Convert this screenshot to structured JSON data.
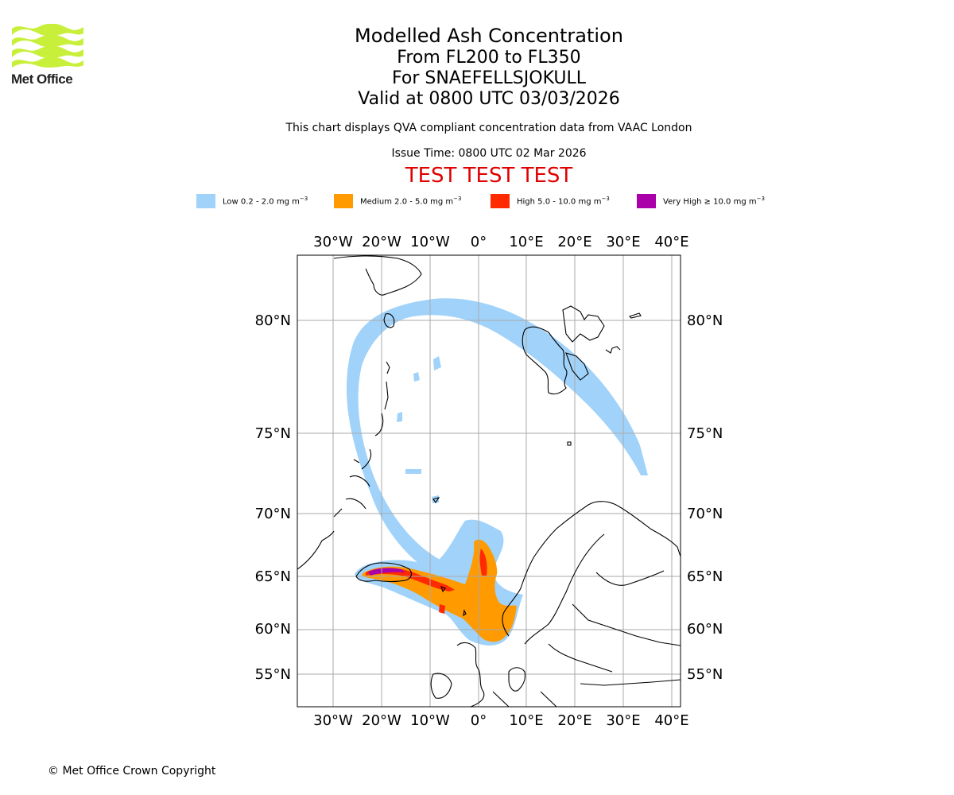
{
  "logo": {
    "name": "Met Office",
    "colors": [
      "#c8f03a",
      "#b4e02a"
    ]
  },
  "title": {
    "line1": "Modelled Ash Concentration",
    "line2": "From FL200 to FL350",
    "line3": "For SNAEFELLSJOKULL",
    "line4": "Valid at 0800 UTC 03/03/2026"
  },
  "subtitle": "This chart displays QVA compliant concentration data from VAAC London",
  "issue_time": "Issue Time: 0800 UTC 02 Mar 2026",
  "test_banner": "TEST TEST TEST",
  "legend": [
    {
      "label": "Low 0.2 - 2.0 mg m",
      "exp": "−3",
      "color": "#a0d2fa"
    },
    {
      "label": "Medium 2.0 - 5.0 mg m",
      "exp": "−3",
      "color": "#ff9a00"
    },
    {
      "label": "High 5.0 - 10.0 mg m",
      "exp": "−3",
      "color": "#ff2a00"
    },
    {
      "label": "Very High  ≥  10.0 mg m",
      "exp": "−3",
      "color": "#aa00aa"
    }
  ],
  "map": {
    "lon_labels": [
      "30°W",
      "20°W",
      "10°W",
      "0°",
      "10°E",
      "20°E",
      "30°E",
      "40°E"
    ],
    "lat_labels": [
      "80°N",
      "75°N",
      "70°N",
      "65°N",
      "60°N",
      "55°N"
    ],
    "colors": {
      "low": "#a0d2fa",
      "medium": "#ff9a00",
      "high": "#ff2a00",
      "very_high": "#aa00aa",
      "grid": "#aaaaaa",
      "coast": "#000000"
    }
  },
  "copyright": "© Met Office Crown Copyright"
}
